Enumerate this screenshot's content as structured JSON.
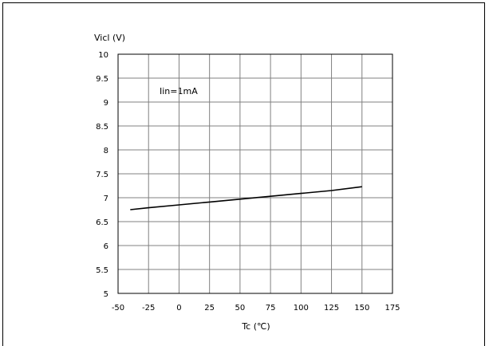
{
  "chart_data": {
    "type": "line",
    "title": "",
    "ylabel": "Vicl (V)",
    "xlabel": "Tc (℃)",
    "annotation": "Iin=1mA",
    "xlim": [
      -50,
      175
    ],
    "ylim": [
      5,
      10
    ],
    "xticks": [
      -50,
      -25,
      0,
      25,
      50,
      75,
      100,
      125,
      150,
      175
    ],
    "yticks": [
      5,
      5.5,
      6,
      6.5,
      7,
      7.5,
      8,
      8.5,
      9,
      9.5,
      10
    ],
    "xtick_labels": [
      "-50",
      "-25",
      "0",
      "25",
      "50",
      "75",
      "100",
      "125",
      "150",
      "175"
    ],
    "ytick_labels": [
      "5",
      "5.5",
      "6",
      "6.5",
      "7",
      "7.5",
      "8",
      "8.5",
      "9",
      "9.5",
      "10"
    ],
    "grid": true,
    "line_color": "#000000",
    "series": [
      {
        "x": [
          -40,
          -25,
          0,
          25,
          50,
          75,
          100,
          125,
          150
        ],
        "values": [
          6.75,
          6.79,
          6.85,
          6.91,
          6.97,
          7.03,
          7.09,
          7.15,
          7.23
        ]
      }
    ]
  }
}
